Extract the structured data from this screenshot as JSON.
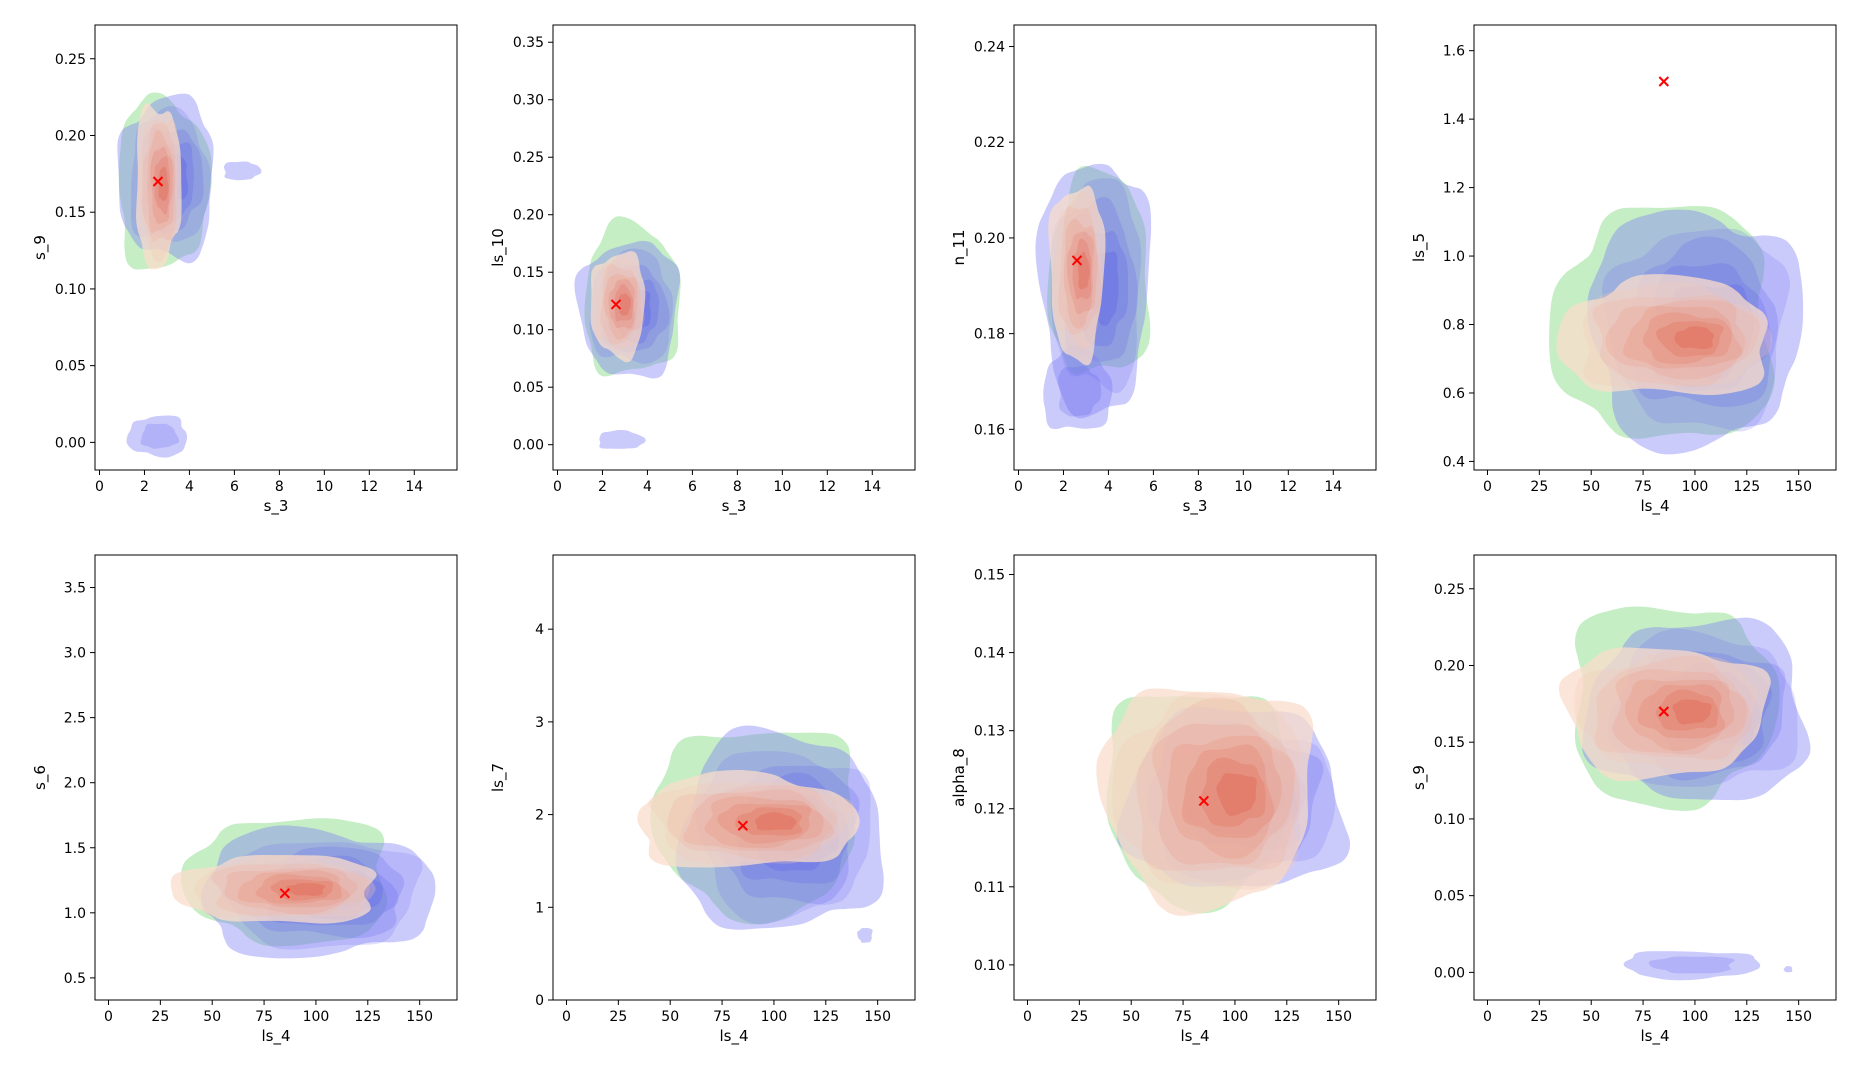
{
  "colors": {
    "green": "#9fe29f",
    "blue": "#7c7cf5",
    "blue_dark": "#3a3ae6",
    "red_light": "#fadccb",
    "red_dark": "#d9412a",
    "marker": "#ff0000"
  },
  "chart_data": [
    {
      "type": "contour",
      "xlabel": "s_3",
      "ylabel": "s_9",
      "xlim": [
        -0.2,
        15.9
      ],
      "ylim": [
        -0.018,
        0.272
      ],
      "xticks": [
        0,
        2,
        4,
        6,
        8,
        10,
        12,
        14
      ],
      "xtick_labels": [
        "0",
        "2",
        "4",
        "6",
        "8",
        "10",
        "12",
        "14"
      ],
      "yticks": [
        0,
        0.05,
        0.1,
        0.15,
        0.2,
        0.25
      ],
      "ytick_labels": [
        "0.00",
        "0.05",
        "0.10",
        "0.15",
        "0.20",
        "0.25"
      ],
      "marker": [
        2.6,
        0.17
      ],
      "blobs": [
        {
          "color": "green",
          "cx": 2.8,
          "cy": 0.168,
          "rx": 2.0,
          "ry": 0.055,
          "alpha": 0.55
        },
        {
          "color": "blue",
          "cx": 3.0,
          "cy": 0.172,
          "rx": 2.1,
          "ry": 0.052,
          "alpha": 0.35,
          "levels": 5
        },
        {
          "color": "blue",
          "cx": 6.3,
          "cy": 0.177,
          "rx": 0.8,
          "ry": 0.006,
          "alpha": 0.35
        },
        {
          "color": "blue",
          "cx": 2.6,
          "cy": 0.004,
          "rx": 1.3,
          "ry": 0.013,
          "alpha": 0.35,
          "levels": 2
        },
        {
          "color": "red",
          "cx": 2.6,
          "cy": 0.168,
          "rx": 1.0,
          "ry": 0.052,
          "alpha": 0.55,
          "levels": 7
        }
      ]
    },
    {
      "type": "contour",
      "xlabel": "s_3",
      "ylabel": "ls_10",
      "xlim": [
        -0.2,
        15.9
      ],
      "ylim": [
        -0.022,
        0.365
      ],
      "xticks": [
        0,
        2,
        4,
        6,
        8,
        10,
        12,
        14
      ],
      "xtick_labels": [
        "0",
        "2",
        "4",
        "6",
        "8",
        "10",
        "12",
        "14"
      ],
      "yticks": [
        0,
        0.05,
        0.1,
        0.15,
        0.2,
        0.25,
        0.3,
        0.35
      ],
      "ytick_labels": [
        "0.00",
        "0.05",
        "0.10",
        "0.15",
        "0.20",
        "0.25",
        "0.30",
        "0.35"
      ],
      "marker": [
        2.6,
        0.122
      ],
      "blobs": [
        {
          "color": "green",
          "cx": 3.3,
          "cy": 0.125,
          "rx": 2.1,
          "ry": 0.065,
          "alpha": 0.55
        },
        {
          "color": "blue",
          "cx": 3.2,
          "cy": 0.118,
          "rx": 2.2,
          "ry": 0.058,
          "alpha": 0.35,
          "levels": 5
        },
        {
          "color": "blue",
          "cx": 2.8,
          "cy": 0.004,
          "rx": 1.0,
          "ry": 0.008,
          "alpha": 0.35
        },
        {
          "color": "red",
          "cx": 2.7,
          "cy": 0.122,
          "rx": 1.2,
          "ry": 0.045,
          "alpha": 0.55,
          "levels": 7
        }
      ]
    },
    {
      "type": "contour",
      "xlabel": "s_3",
      "ylabel": "n_11",
      "xlim": [
        -0.2,
        15.9
      ],
      "ylim": [
        0.1515,
        0.2445
      ],
      "xticks": [
        0,
        2,
        4,
        6,
        8,
        10,
        12,
        14
      ],
      "xtick_labels": [
        "0",
        "2",
        "4",
        "6",
        "8",
        "10",
        "12",
        "14"
      ],
      "yticks": [
        0.16,
        0.18,
        0.2,
        0.22,
        0.24
      ],
      "ytick_labels": [
        "0.16",
        "0.18",
        "0.20",
        "0.22",
        "0.24"
      ],
      "marker": [
        2.6,
        0.1953
      ],
      "blobs": [
        {
          "color": "green",
          "cx": 3.6,
          "cy": 0.192,
          "rx": 2.2,
          "ry": 0.021,
          "alpha": 0.55
        },
        {
          "color": "blue",
          "cx": 3.4,
          "cy": 0.19,
          "rx": 2.4,
          "ry": 0.026,
          "alpha": 0.35,
          "levels": 5
        },
        {
          "color": "blue",
          "cx": 2.6,
          "cy": 0.168,
          "rx": 1.5,
          "ry": 0.0085,
          "alpha": 0.35,
          "levels": 2
        },
        {
          "color": "red",
          "cx": 2.6,
          "cy": 0.193,
          "rx": 1.2,
          "ry": 0.018,
          "alpha": 0.55,
          "levels": 7
        }
      ]
    },
    {
      "type": "contour",
      "xlabel": "ls_4",
      "ylabel": "ls_5",
      "xlim": [
        -6.5,
        168
      ],
      "ylim": [
        0.375,
        1.675
      ],
      "xticks": [
        0,
        25,
        50,
        75,
        100,
        125,
        150
      ],
      "xtick_labels": [
        "0",
        "25",
        "50",
        "75",
        "100",
        "125",
        "150"
      ],
      "yticks": [
        0.4,
        0.6,
        0.8,
        1.0,
        1.2,
        1.4,
        1.6
      ],
      "ytick_labels": [
        "0.4",
        "0.6",
        "0.8",
        "1.0",
        "1.2",
        "1.4",
        "1.6"
      ],
      "marker": [
        85,
        1.51
      ],
      "blobs": [
        {
          "color": "green",
          "cx": 86,
          "cy": 0.8,
          "rx": 52,
          "ry": 0.34,
          "alpha": 0.55
        },
        {
          "color": "blue",
          "cx": 100,
          "cy": 0.79,
          "rx": 50,
          "ry": 0.34,
          "alpha": 0.35,
          "levels": 6
        },
        {
          "color": "red",
          "cx": 86,
          "cy": 0.76,
          "rx": 50,
          "ry": 0.17,
          "alpha": 0.55,
          "levels": 8
        }
      ]
    },
    {
      "type": "contour",
      "xlabel": "ls_4",
      "ylabel": "s_6",
      "xlim": [
        -6.5,
        168
      ],
      "ylim": [
        0.33,
        3.75
      ],
      "xticks": [
        0,
        25,
        50,
        75,
        100,
        125,
        150
      ],
      "xtick_labels": [
        "0",
        "25",
        "50",
        "75",
        "100",
        "125",
        "150"
      ],
      "yticks": [
        0.5,
        1.0,
        1.5,
        2.0,
        2.5,
        3.0,
        3.5
      ],
      "ytick_labels": [
        "0.5",
        "1.0",
        "1.5",
        "2.0",
        "2.5",
        "3.0",
        "3.5"
      ],
      "marker": [
        85,
        1.15
      ],
      "blobs": [
        {
          "color": "green",
          "cx": 88,
          "cy": 1.25,
          "rx": 48,
          "ry": 0.48,
          "alpha": 0.55
        },
        {
          "color": "blue",
          "cx": 100,
          "cy": 1.15,
          "rx": 55,
          "ry": 0.48,
          "alpha": 0.35,
          "levels": 6
        },
        {
          "color": "red",
          "cx": 82,
          "cy": 1.18,
          "rx": 48,
          "ry": 0.26,
          "alpha": 0.55,
          "levels": 8
        }
      ]
    },
    {
      "type": "contour",
      "xlabel": "ls_4",
      "ylabel": "ls_7",
      "xlim": [
        -6.5,
        168
      ],
      "ylim": [
        0,
        4.8
      ],
      "xticks": [
        0,
        25,
        50,
        75,
        100,
        125,
        150
      ],
      "xtick_labels": [
        "0",
        "25",
        "50",
        "75",
        "100",
        "125",
        "150"
      ],
      "yticks": [
        0,
        1,
        2,
        3,
        4
      ],
      "ytick_labels": [
        "0",
        "1",
        "2",
        "3",
        "4"
      ],
      "marker": [
        85,
        1.88
      ],
      "blobs": [
        {
          "color": "green",
          "cx": 92,
          "cy": 1.95,
          "rx": 48,
          "ry": 1.0,
          "alpha": 0.55
        },
        {
          "color": "blue",
          "cx": 103,
          "cy": 1.8,
          "rx": 48,
          "ry": 1.05,
          "alpha": 0.35,
          "levels": 6
        },
        {
          "color": "blue",
          "cx": 144,
          "cy": 0.7,
          "rx": 3.5,
          "ry": 0.08,
          "alpha": 0.35
        },
        {
          "color": "red",
          "cx": 86,
          "cy": 1.92,
          "rx": 52,
          "ry": 0.5,
          "alpha": 0.55,
          "levels": 8
        }
      ]
    },
    {
      "type": "contour",
      "xlabel": "ls_4",
      "ylabel": "alpha_8",
      "xlim": [
        -6.5,
        168
      ],
      "ylim": [
        0.0955,
        0.1525
      ],
      "xticks": [
        0,
        25,
        50,
        75,
        100,
        125,
        150
      ],
      "xtick_labels": [
        "0",
        "25",
        "50",
        "75",
        "100",
        "125",
        "150"
      ],
      "yticks": [
        0.1,
        0.11,
        0.12,
        0.13,
        0.14,
        0.15
      ],
      "ytick_labels": [
        "0.10",
        "0.11",
        "0.12",
        "0.13",
        "0.14",
        "0.15"
      ],
      "marker": [
        85,
        0.121
      ],
      "blobs": [
        {
          "color": "green",
          "cx": 82,
          "cy": 0.122,
          "rx": 44,
          "ry": 0.0135,
          "alpha": 0.55
        },
        {
          "color": "blue",
          "cx": 100,
          "cy": 0.121,
          "rx": 52,
          "ry": 0.0115,
          "alpha": 0.35,
          "levels": 6
        },
        {
          "color": "red",
          "cx": 87,
          "cy": 0.122,
          "rx": 50,
          "ry": 0.014,
          "alpha": 0.55,
          "levels": 8
        }
      ]
    },
    {
      "type": "contour",
      "xlabel": "ls_4",
      "ylabel": "s_9",
      "xlim": [
        -6.5,
        168
      ],
      "ylim": [
        -0.018,
        0.272
      ],
      "xticks": [
        0,
        25,
        50,
        75,
        100,
        125,
        150
      ],
      "xtick_labels": [
        "0",
        "25",
        "50",
        "75",
        "100",
        "125",
        "150"
      ],
      "yticks": [
        0,
        0.05,
        0.1,
        0.15,
        0.2,
        0.25
      ],
      "ytick_labels": [
        "0.00",
        "0.05",
        "0.10",
        "0.15",
        "0.20",
        "0.25"
      ],
      "marker": [
        85,
        0.17
      ],
      "blobs": [
        {
          "color": "green",
          "cx": 88,
          "cy": 0.175,
          "rx": 48,
          "ry": 0.065,
          "alpha": 0.55
        },
        {
          "color": "blue",
          "cx": 102,
          "cy": 0.17,
          "rx": 52,
          "ry": 0.058,
          "alpha": 0.35,
          "levels": 6
        },
        {
          "color": "blue",
          "cx": 98,
          "cy": 0.005,
          "rx": 32,
          "ry": 0.009,
          "alpha": 0.35,
          "levels": 2
        },
        {
          "color": "blue",
          "cx": 145,
          "cy": 0.002,
          "rx": 2,
          "ry": 0.002,
          "alpha": 0.35
        },
        {
          "color": "red",
          "cx": 85,
          "cy": 0.17,
          "rx": 48,
          "ry": 0.042,
          "alpha": 0.55,
          "levels": 8
        }
      ]
    }
  ]
}
